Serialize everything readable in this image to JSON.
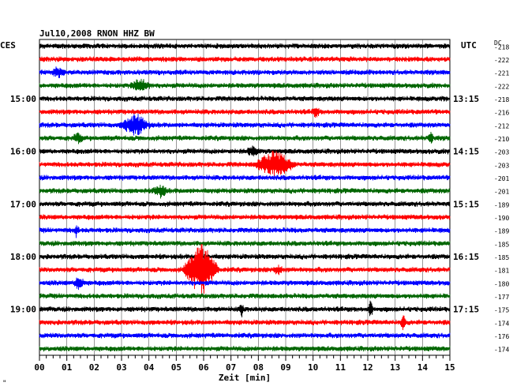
{
  "chart_data": {
    "type": "line",
    "title": "Jul10,2008   RNON HHZ BW",
    "left_label": "CES",
    "right_label": "UTC",
    "dc_label": "DC",
    "xlabel": "Zeit [min]",
    "xlim": [
      0,
      15
    ],
    "x_ticks": [
      "00",
      "01",
      "02",
      "03",
      "04",
      "05",
      "06",
      "07",
      "08",
      "09",
      "10",
      "11",
      "12",
      "13",
      "14",
      "15"
    ],
    "trace_colors": [
      "#000000",
      "#ff0000",
      "#0000ff",
      "#006600"
    ],
    "rows": [
      {
        "ces": "",
        "utc": "",
        "dc": "-218"
      },
      {
        "ces": "",
        "utc": "",
        "dc": "-222"
      },
      {
        "ces": "",
        "utc": "",
        "dc": "-221"
      },
      {
        "ces": "",
        "utc": "",
        "dc": "-222"
      },
      {
        "ces": "15:00",
        "utc": "13:15",
        "dc": "-218"
      },
      {
        "ces": "",
        "utc": "",
        "dc": "-216"
      },
      {
        "ces": "",
        "utc": "",
        "dc": "-212"
      },
      {
        "ces": "",
        "utc": "",
        "dc": "-210"
      },
      {
        "ces": "16:00",
        "utc": "14:15",
        "dc": "-203"
      },
      {
        "ces": "",
        "utc": "",
        "dc": "-203"
      },
      {
        "ces": "",
        "utc": "",
        "dc": "-201"
      },
      {
        "ces": "",
        "utc": "",
        "dc": "-201"
      },
      {
        "ces": "17:00",
        "utc": "15:15",
        "dc": "-189"
      },
      {
        "ces": "",
        "utc": "",
        "dc": "-190"
      },
      {
        "ces": "",
        "utc": "",
        "dc": "-189"
      },
      {
        "ces": "",
        "utc": "",
        "dc": "-185"
      },
      {
        "ces": "18:00",
        "utc": "16:15",
        "dc": "-185"
      },
      {
        "ces": "",
        "utc": "",
        "dc": "-181"
      },
      {
        "ces": "",
        "utc": "",
        "dc": "-180"
      },
      {
        "ces": "",
        "utc": "",
        "dc": "-177"
      },
      {
        "ces": "19:00",
        "utc": "17:15",
        "dc": "-175"
      },
      {
        "ces": "",
        "utc": "",
        "dc": "-174"
      },
      {
        "ces": "",
        "utc": "",
        "dc": "-176"
      },
      {
        "ces": "",
        "utc": "",
        "dc": "-174"
      }
    ],
    "events": [
      {
        "row": 2,
        "minute": 0.7,
        "amplitude": 0.6,
        "duration": 0.3
      },
      {
        "row": 3,
        "minute": 3.7,
        "amplitude": 0.8,
        "duration": 0.4
      },
      {
        "row": 5,
        "minute": 10.1,
        "amplitude": 0.5,
        "duration": 0.2
      },
      {
        "row": 6,
        "minute": 3.5,
        "amplitude": 1.4,
        "duration": 0.6
      },
      {
        "row": 7,
        "minute": 1.4,
        "amplitude": 0.6,
        "duration": 0.2
      },
      {
        "row": 7,
        "minute": 14.3,
        "amplitude": 1.0,
        "duration": 0.1
      },
      {
        "row": 8,
        "minute": 7.8,
        "amplitude": 0.5,
        "duration": 0.3
      },
      {
        "row": 9,
        "minute": 8.6,
        "amplitude": 1.8,
        "duration": 0.8
      },
      {
        "row": 11,
        "minute": 4.4,
        "amplitude": 0.8,
        "duration": 0.3
      },
      {
        "row": 14,
        "minute": 1.35,
        "amplitude": 0.8,
        "duration": 0.1
      },
      {
        "row": 17,
        "minute": 5.9,
        "amplitude": 3.6,
        "duration": 0.7
      },
      {
        "row": 17,
        "minute": 8.7,
        "amplitude": 0.6,
        "duration": 0.2
      },
      {
        "row": 18,
        "minute": 1.45,
        "amplitude": 1.0,
        "duration": 0.2
      },
      {
        "row": 20,
        "minute": 7.4,
        "amplitude": 0.9,
        "duration": 0.1
      },
      {
        "row": 20,
        "minute": 12.1,
        "amplitude": 1.2,
        "duration": 0.1
      },
      {
        "row": 21,
        "minute": 13.3,
        "amplitude": 1.2,
        "duration": 0.1
      }
    ],
    "grid": true
  },
  "footer_mark": "\""
}
